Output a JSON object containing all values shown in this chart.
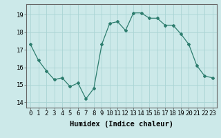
{
  "x": [
    0,
    1,
    2,
    3,
    4,
    5,
    6,
    7,
    8,
    9,
    10,
    11,
    12,
    13,
    14,
    15,
    16,
    17,
    18,
    19,
    20,
    21,
    22,
    23
  ],
  "y": [
    17.3,
    16.4,
    15.8,
    15.3,
    15.4,
    14.9,
    15.1,
    14.2,
    14.8,
    17.3,
    18.5,
    18.6,
    18.1,
    19.1,
    19.1,
    18.8,
    18.8,
    18.4,
    18.4,
    17.9,
    17.3,
    16.1,
    15.5,
    15.4
  ],
  "line_color": "#2d7d6e",
  "marker": "D",
  "marker_size": 2.0,
  "bg_color": "#cce9e9",
  "grid_color": "#aad4d4",
  "xlabel": "Humidex (Indice chaleur)",
  "xlabel_fontsize": 7.5,
  "ylabel_ticks": [
    14,
    15,
    16,
    17,
    18,
    19
  ],
  "xlim": [
    -0.5,
    23.5
  ],
  "ylim": [
    13.7,
    19.6
  ],
  "xticks": [
    0,
    1,
    2,
    3,
    4,
    5,
    6,
    7,
    8,
    9,
    10,
    11,
    12,
    13,
    14,
    15,
    16,
    17,
    18,
    19,
    20,
    21,
    22,
    23
  ],
  "tick_fontsize": 6.5,
  "linewidth": 0.9
}
